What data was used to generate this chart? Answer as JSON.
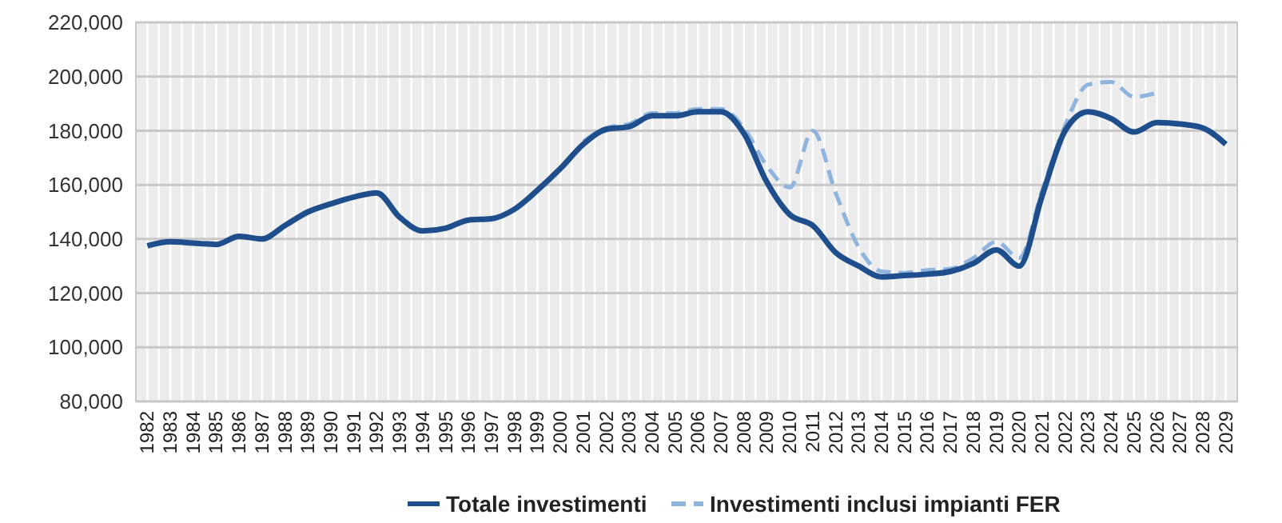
{
  "chart_data": {
    "type": "line",
    "categories": [
      "1982",
      "1983",
      "1984",
      "1985",
      "1986",
      "1987",
      "1988",
      "1989",
      "1990",
      "1991",
      "1992",
      "1993",
      "1994",
      "1995",
      "1996",
      "1997",
      "1998",
      "1999",
      "2000",
      "2001",
      "2002",
      "2003",
      "2004",
      "2005",
      "2006",
      "2007",
      "2008",
      "2009",
      "2010",
      "2011",
      "2012",
      "2013",
      "2014",
      "2015",
      "2016",
      "2017",
      "2018",
      "2019",
      "2020",
      "2021",
      "2022",
      "2023",
      "2024",
      "2025",
      "2026",
      "2027",
      "2028",
      "2029"
    ],
    "series": [
      {
        "name": "Totale investimenti",
        "color": "#1f4e8c",
        "line_style": "solid",
        "values": [
          137500,
          139000,
          138500,
          138000,
          141000,
          140000,
          145000,
          150000,
          153000,
          155500,
          157000,
          148000,
          143000,
          144000,
          147000,
          147500,
          151000,
          158000,
          166000,
          175000,
          180500,
          181500,
          185500,
          185500,
          187000,
          187000,
          179000,
          161000,
          149000,
          145000,
          135000,
          130000,
          126000,
          126500,
          127000,
          128000,
          131000,
          136000,
          130000,
          156000,
          180000,
          187000,
          184500,
          179500,
          183000,
          182500,
          181000,
          175000
        ]
      },
      {
        "name": "Investimenti inclusi impianti FER",
        "color": "#8fb4de",
        "line_style": "dashed",
        "values": [
          null,
          null,
          null,
          null,
          null,
          null,
          null,
          null,
          null,
          null,
          null,
          null,
          null,
          null,
          null,
          null,
          null,
          null,
          null,
          176000,
          181000,
          182500,
          186500,
          186500,
          188000,
          188000,
          181000,
          167000,
          159000,
          180000,
          157000,
          137000,
          128000,
          127500,
          128500,
          129000,
          133000,
          139000,
          133000,
          158000,
          182000,
          197000,
          198000,
          192500,
          194000,
          null,
          null,
          null
        ]
      }
    ],
    "ylim": [
      80000,
      220000
    ],
    "yticks": [
      {
        "value": 80000,
        "label": "80,000"
      },
      {
        "value": 100000,
        "label": "100,000"
      },
      {
        "value": 120000,
        "label": "120,000"
      },
      {
        "value": 140000,
        "label": "140,000"
      },
      {
        "value": 160000,
        "label": "160,000"
      },
      {
        "value": 180000,
        "label": "180,000"
      },
      {
        "value": 200000,
        "label": "200,000"
      },
      {
        "value": 220000,
        "label": "220,000"
      }
    ],
    "grid": true,
    "legend": "bottom",
    "marker": "none"
  }
}
